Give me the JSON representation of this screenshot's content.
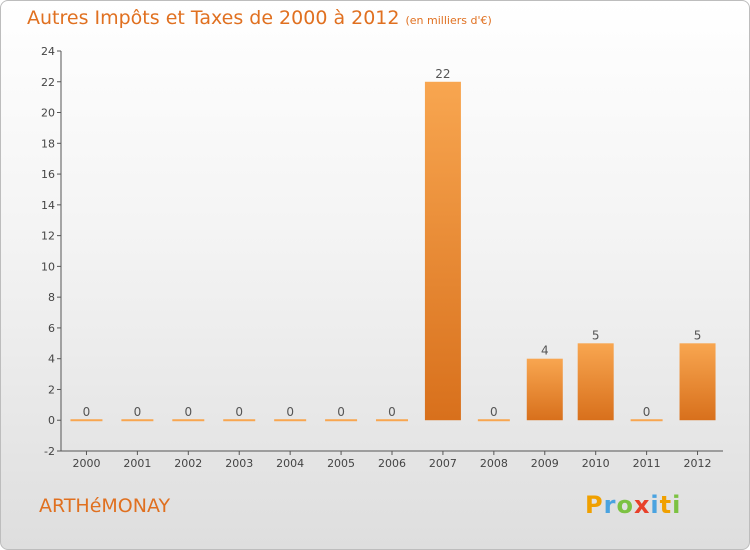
{
  "header": {
    "title": "Autres Impôts et Taxes de 2000 à 2012",
    "unit": "(en milliers d'€)"
  },
  "footer": {
    "place": "ARTHéMONAY",
    "logo": [
      "P",
      "r",
      "o",
      "x",
      "i",
      "t",
      "i"
    ]
  },
  "colors": {
    "bar_light": "#f8a650",
    "bar_dark": "#d8701c",
    "title": "#e07020",
    "axis": "#555555"
  },
  "chart_data": {
    "type": "bar",
    "title": "Autres Impôts et Taxes de 2000 à 2012",
    "subtitle": "(en milliers d'€)",
    "categories": [
      "2000",
      "2001",
      "2002",
      "2003",
      "2004",
      "2005",
      "2006",
      "2007",
      "2008",
      "2009",
      "2010",
      "2011",
      "2012"
    ],
    "values": [
      0,
      0,
      0,
      0,
      0,
      0,
      0,
      22,
      0,
      4,
      5,
      0,
      5
    ],
    "data_labels": [
      "0",
      "0",
      "0",
      "0",
      "0",
      "0",
      "0",
      "22",
      "0",
      "4",
      "5",
      "0",
      "5"
    ],
    "ylim": [
      -2,
      24
    ],
    "yticks": [
      -2,
      0,
      2,
      4,
      6,
      8,
      10,
      12,
      14,
      16,
      18,
      20,
      22,
      24
    ],
    "grid": false,
    "legend": "none"
  }
}
